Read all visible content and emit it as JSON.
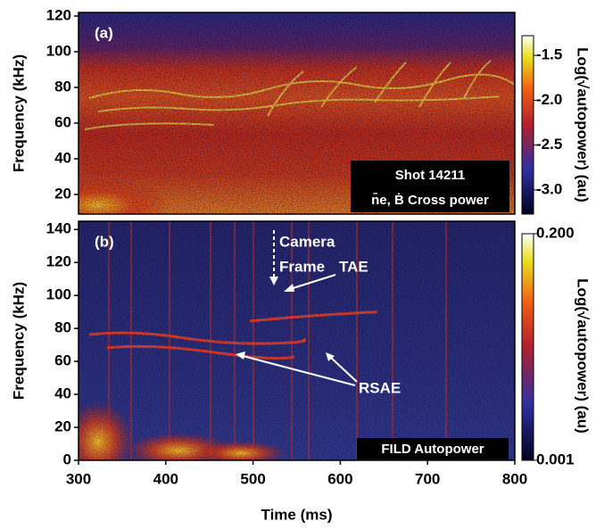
{
  "chart_data": [
    {
      "type": "heatmap",
      "label": "(a)",
      "ylabel": "Frequency (kHz)",
      "xlim": [
        300,
        800
      ],
      "ylim": [
        9,
        122
      ],
      "yticks": [
        20,
        40,
        60,
        80,
        100,
        120
      ],
      "annotations": [
        "Shot 14211",
        "n̄e, Ḃ Cross power"
      ],
      "colorbar": {
        "label": "Log(√autopower) (au)",
        "log": false,
        "lim": [
          -3.27,
          -1.28
        ],
        "ticks": [
          {
            "value": -3,
            "label": "-3.0"
          },
          -2.5,
          {
            "value": -2,
            "label": "-2.0"
          },
          -1.5
        ]
      }
    },
    {
      "type": "heatmap",
      "label": "(b)",
      "ylabel": "Frequency (kHz)",
      "xlabel": "Time (ms)",
      "xlim": [
        300,
        800
      ],
      "xticks": [
        300,
        400,
        500,
        600,
        700,
        800
      ],
      "ylim": [
        0,
        145
      ],
      "yticks": [
        0,
        20,
        40,
        60,
        80,
        100,
        120,
        140
      ],
      "annotations": [
        "Camera",
        "Frame",
        "TAE",
        "RSAE",
        "FILD Autopower"
      ],
      "colorbar": {
        "label": "Log(√autopower) (au)",
        "log": true,
        "lim": [
          0.001,
          0.2
        ],
        "ticks": [
          0.001,
          {
            "value": 0.2,
            "label": "0.200"
          }
        ]
      }
    }
  ]
}
